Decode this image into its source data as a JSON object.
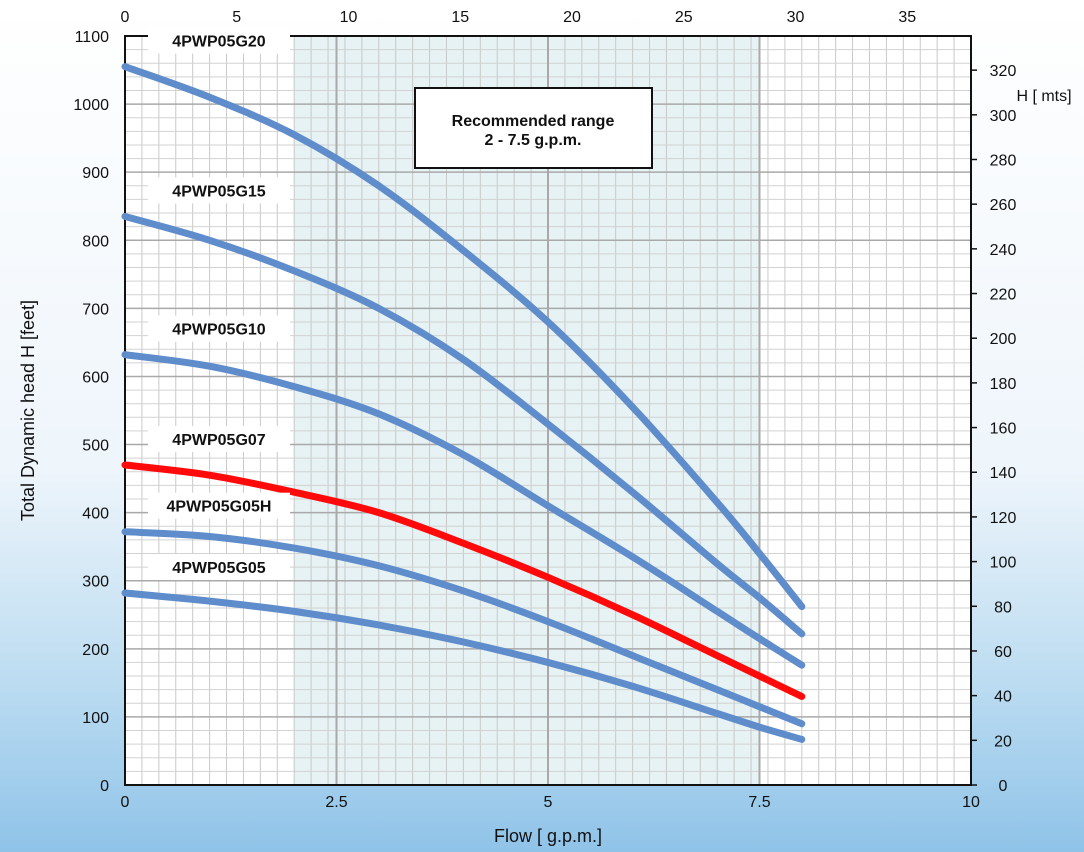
{
  "chart_data": {
    "type": "line",
    "xlabel": "Flow [ g.p.m.]",
    "ylabel": "Total Dynamic head H [feet]",
    "y2label": "H [ mts]",
    "xlim": [
      0,
      10
    ],
    "ylim": [
      0,
      1100
    ],
    "x2lim": [
      0,
      37.85
    ],
    "y2lim": [
      0,
      335.28
    ],
    "x_ticks": [
      0,
      2.5,
      5,
      7.5,
      10
    ],
    "x_tick_labels": [
      "0",
      "2.5",
      "5",
      "7.5",
      "10"
    ],
    "y_ticks": [
      0,
      100,
      200,
      300,
      400,
      500,
      600,
      700,
      800,
      900,
      1000,
      1100
    ],
    "x2_ticks": [
      0,
      5,
      10,
      15,
      20,
      25,
      30,
      35
    ],
    "y2_ticks": [
      0,
      20,
      40,
      60,
      80,
      100,
      120,
      140,
      160,
      180,
      200,
      220,
      240,
      260,
      280,
      300,
      320
    ],
    "grid": true,
    "shaded_region": {
      "x": [
        2,
        7.5
      ],
      "color": "#e6f2f3"
    },
    "annotation": {
      "lines": [
        "Recommended range",
        "2 - 7.5 g.p.m."
      ]
    },
    "series": [
      {
        "name": "4PWP05G20",
        "color": "#5f8ccb",
        "x": [
          0,
          1,
          2,
          3,
          4,
          5,
          6,
          7,
          7.5,
          8
        ],
        "y": [
          1055,
          1010,
          955,
          880,
          785,
          680,
          555,
          415,
          340,
          262
        ]
      },
      {
        "name": "4PWP05G15",
        "color": "#5f8ccb",
        "x": [
          0,
          1,
          2,
          3,
          4,
          5,
          6,
          7,
          7.5,
          8
        ],
        "y": [
          835,
          800,
          755,
          700,
          625,
          530,
          430,
          325,
          275,
          222
        ]
      },
      {
        "name": "4PWP05G10",
        "color": "#5f8ccb",
        "x": [
          0,
          1,
          2,
          3,
          4,
          5,
          6,
          7,
          7.5,
          8
        ],
        "y": [
          632,
          615,
          585,
          545,
          485,
          410,
          335,
          255,
          215,
          176
        ]
      },
      {
        "name": "4PWP05G07",
        "color": "#ff0a0a",
        "x": [
          0,
          1,
          2,
          3,
          4,
          5,
          6,
          7,
          7.5,
          8
        ],
        "y": [
          470,
          455,
          430,
          400,
          355,
          305,
          250,
          190,
          160,
          130
        ]
      },
      {
        "name": "4PWP05G05H",
        "color": "#5f8ccb",
        "x": [
          0,
          1,
          2,
          3,
          4,
          5,
          6,
          7,
          7.5,
          8
        ],
        "y": [
          372,
          365,
          348,
          322,
          285,
          240,
          190,
          140,
          115,
          90
        ]
      },
      {
        "name": "4PWP05G05",
        "color": "#5f8ccb",
        "x": [
          0,
          1,
          2,
          3,
          4,
          5,
          6,
          7,
          7.5,
          8
        ],
        "y": [
          282,
          270,
          255,
          235,
          210,
          180,
          145,
          105,
          85,
          67
        ]
      }
    ]
  }
}
